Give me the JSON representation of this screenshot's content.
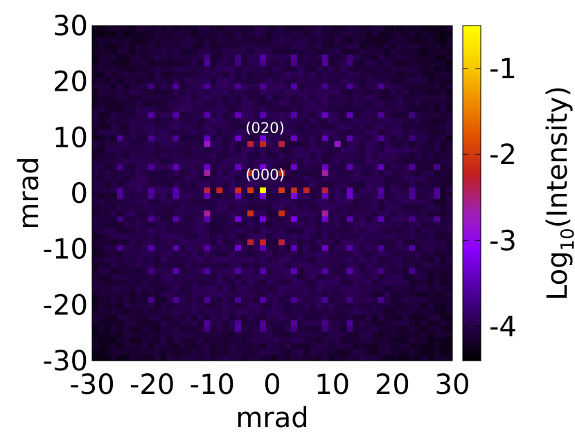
{
  "chart_data": {
    "type": "heatmap",
    "title": "",
    "xlabel": "mrad",
    "ylabel": "mrad",
    "xlim": [
      -30,
      30
    ],
    "ylim": [
      -30,
      30
    ],
    "x_ticks": [
      "-30",
      "-20",
      "-10",
      "0",
      "10",
      "20",
      "30"
    ],
    "y_ticks": [
      "30",
      "20",
      "10",
      "0",
      "-10",
      "-20",
      "-30"
    ],
    "colorbar": {
      "label_main": "Log",
      "label_sub": "10",
      "label_rest": "(Intensity)",
      "range": [
        -4.4,
        -0.5
      ],
      "ticks": [
        "-1",
        "-2",
        "-3",
        "-4"
      ],
      "tick_values": [
        -1,
        -2,
        -3,
        -4
      ],
      "colors": [
        "#000000",
        "#2a0050",
        "#5500a8",
        "#8a00ff",
        "#a020b0",
        "#c02020",
        "#e05000",
        "#f09000",
        "#f8d000",
        "#ffff00"
      ]
    },
    "grid_cells": 58,
    "background_log_intensity": -4.0,
    "reflection_spacing_mrad": [
      4.85,
      4.75
    ],
    "peaks": [
      {
        "x": -1.2,
        "y": 0,
        "value": -0.6
      },
      {
        "x": -3.6,
        "y": 0,
        "value": -2.0
      },
      {
        "x": 1.2,
        "y": 0,
        "value": -2.0
      },
      {
        "x": -6.0,
        "y": 0,
        "value": -2.1
      },
      {
        "x": 3.6,
        "y": 0,
        "value": -2.1
      },
      {
        "x": -8.4,
        "y": 0,
        "value": -2.2
      },
      {
        "x": 6.0,
        "y": 0,
        "value": -2.2
      },
      {
        "x": -10.8,
        "y": 0,
        "value": -2.3
      },
      {
        "x": 8.4,
        "y": 0,
        "value": -2.3
      },
      {
        "x": -3.6,
        "y": 4.0,
        "value": -2.1
      },
      {
        "x": 1.2,
        "y": 4.0,
        "value": -2.1
      },
      {
        "x": -3.6,
        "y": -4.0,
        "value": -2.1
      },
      {
        "x": 1.2,
        "y": -4.0,
        "value": -2.1
      },
      {
        "x": -1.2,
        "y": 8.3,
        "value": -2.2
      },
      {
        "x": -3.6,
        "y": 8.3,
        "value": -2.3
      },
      {
        "x": 1.2,
        "y": 8.3,
        "value": -2.3
      },
      {
        "x": -1.2,
        "y": -8.3,
        "value": -2.2
      },
      {
        "x": -3.6,
        "y": -8.3,
        "value": -2.3
      },
      {
        "x": 1.2,
        "y": -8.3,
        "value": -2.3
      },
      {
        "x": -10.8,
        "y": 4.0,
        "value": -2.6
      },
      {
        "x": -10.8,
        "y": -4.0,
        "value": -2.6
      },
      {
        "x": 8.4,
        "y": 4.0,
        "value": -2.6
      },
      {
        "x": 8.4,
        "y": -4.0,
        "value": -2.6
      },
      {
        "x": 10.8,
        "y": 8.3,
        "value": -2.8
      },
      {
        "x": -10.8,
        "y": 8.3,
        "value": -2.8
      }
    ],
    "annotations": [
      {
        "text": "(020)",
        "x": -1.2,
        "y": 10.8
      },
      {
        "text": "(000)",
        "x": -1.2,
        "y": 2.4
      }
    ]
  }
}
